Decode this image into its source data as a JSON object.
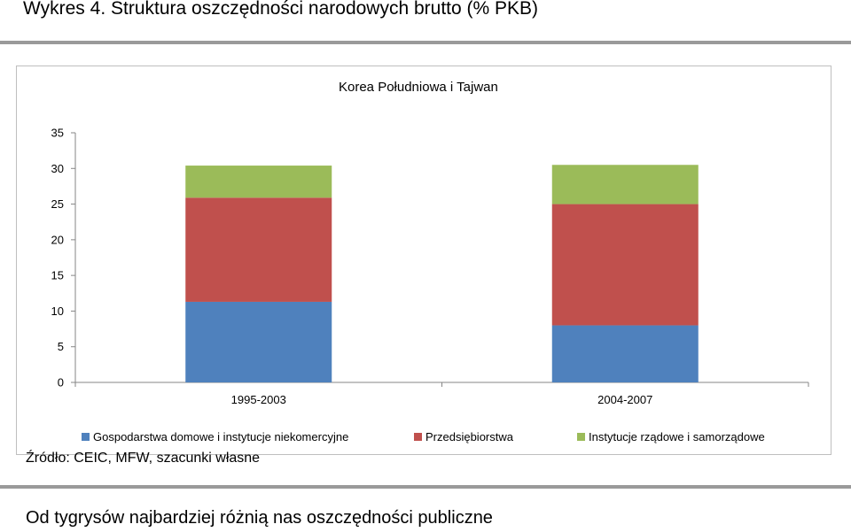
{
  "slide": {
    "title": "Wykres 4. Struktura oszczędności narodowych brutto (% PKB)",
    "source": "Źródło: CEIC, MFW, szacunki własne",
    "footer": "Od tygrysów najbardziej różnią nas oszczędności publiczne"
  },
  "chart_data": {
    "type": "bar",
    "stacked": true,
    "title": "Korea Południowa i Tajwan",
    "xlabel": "",
    "ylabel": "",
    "categories": [
      "1995-2003",
      "2004-2007"
    ],
    "series": [
      {
        "name": "Gospodarstwa domowe i instytucje niekomercyjne",
        "color": "#4f81bd",
        "values": [
          11.3,
          8.0
        ]
      },
      {
        "name": "Przedsiębiorstwa",
        "color": "#c0504d",
        "values": [
          14.6,
          17.0
        ]
      },
      {
        "name": "Instytucje rządowe i samorządowe",
        "color": "#9bbb59",
        "values": [
          4.5,
          5.5
        ]
      }
    ],
    "ylim": [
      0,
      35
    ],
    "yticks": [
      0,
      5,
      10,
      15,
      20,
      25,
      30,
      35
    ],
    "grid": false,
    "legend_position": "bottom"
  }
}
